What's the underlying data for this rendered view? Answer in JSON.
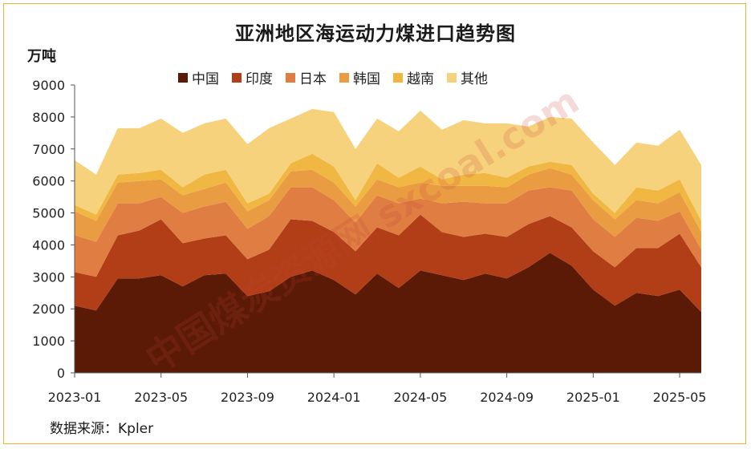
{
  "chart_data": {
    "type": "area",
    "stacked": true,
    "title": "亚洲地区海运动力煤进口趋势图",
    "ylabel": "万吨",
    "ylim": [
      0,
      9000
    ],
    "yticks": [
      0,
      1000,
      2000,
      3000,
      4000,
      5000,
      6000,
      7000,
      8000,
      9000
    ],
    "xtick_labels": [
      "2023-01",
      "2023-05",
      "2023-09",
      "2024-01",
      "2024-05",
      "2024-09",
      "2025-01",
      "2025-05"
    ],
    "source": "数据来源：Kpler",
    "watermark": "中国煤炭资源网 sxcoal.com",
    "x": [
      "2023-01",
      "2023-02",
      "2023-03",
      "2023-04",
      "2023-05",
      "2023-06",
      "2023-07",
      "2023-08",
      "2023-09",
      "2023-10",
      "2023-11",
      "2023-12",
      "2024-01",
      "2024-02",
      "2024-03",
      "2024-04",
      "2024-05",
      "2024-06",
      "2024-07",
      "2024-08",
      "2024-09",
      "2024-10",
      "2024-11",
      "2024-12",
      "2025-01",
      "2025-02",
      "2025-03",
      "2025-04",
      "2025-05",
      "2025-06"
    ],
    "series": [
      {
        "name": "中国",
        "color": "#5a1a06",
        "values": [
          2100,
          1950,
          2950,
          2950,
          3050,
          2700,
          3050,
          3100,
          2400,
          2550,
          3000,
          3200,
          2900,
          2450,
          3100,
          2650,
          3200,
          3050,
          2900,
          3100,
          2950,
          3300,
          3750,
          3350,
          2600,
          2100,
          2500,
          2400,
          2600,
          1900
        ]
      },
      {
        "name": "印度",
        "color": "#b13e16",
        "values": [
          1050,
          1050,
          1350,
          1500,
          1750,
          1350,
          1150,
          1200,
          1150,
          1300,
          1800,
          1550,
          1500,
          1350,
          1450,
          1650,
          1750,
          1350,
          1350,
          1250,
          1300,
          1350,
          1150,
          1200,
          1200,
          1200,
          1400,
          1500,
          1750,
          1400
        ]
      },
      {
        "name": "日本",
        "color": "#df7d42",
        "values": [
          1150,
          1100,
          1000,
          850,
          700,
          950,
          1000,
          1050,
          950,
          1050,
          1000,
          1050,
          1000,
          900,
          1000,
          1000,
          500,
          900,
          1100,
          950,
          1050,
          1050,
          900,
          1150,
          1000,
          950,
          950,
          850,
          700,
          550
        ]
      },
      {
        "name": "韩国",
        "color": "#ea9c42",
        "values": [
          750,
          650,
          650,
          700,
          550,
          550,
          550,
          600,
          550,
          500,
          500,
          550,
          550,
          500,
          500,
          500,
          500,
          550,
          500,
          550,
          500,
          500,
          600,
          500,
          600,
          550,
          550,
          550,
          600,
          550
        ]
      },
      {
        "name": "越南",
        "color": "#f1b743",
        "values": [
          200,
          200,
          250,
          250,
          300,
          250,
          450,
          400,
          250,
          200,
          250,
          500,
          500,
          200,
          500,
          300,
          500,
          200,
          350,
          400,
          300,
          250,
          200,
          300,
          200,
          200,
          400,
          400,
          400,
          350
        ]
      },
      {
        "name": "其他",
        "color": "#f7d27c",
        "values": [
          1400,
          1250,
          1450,
          1400,
          1600,
          1700,
          1600,
          1600,
          1850,
          2050,
          1400,
          1400,
          1700,
          1600,
          1400,
          1450,
          1750,
          1550,
          1700,
          1550,
          1700,
          1250,
          1400,
          1450,
          1600,
          1500,
          1400,
          1400,
          1550,
          1750
        ]
      }
    ]
  }
}
